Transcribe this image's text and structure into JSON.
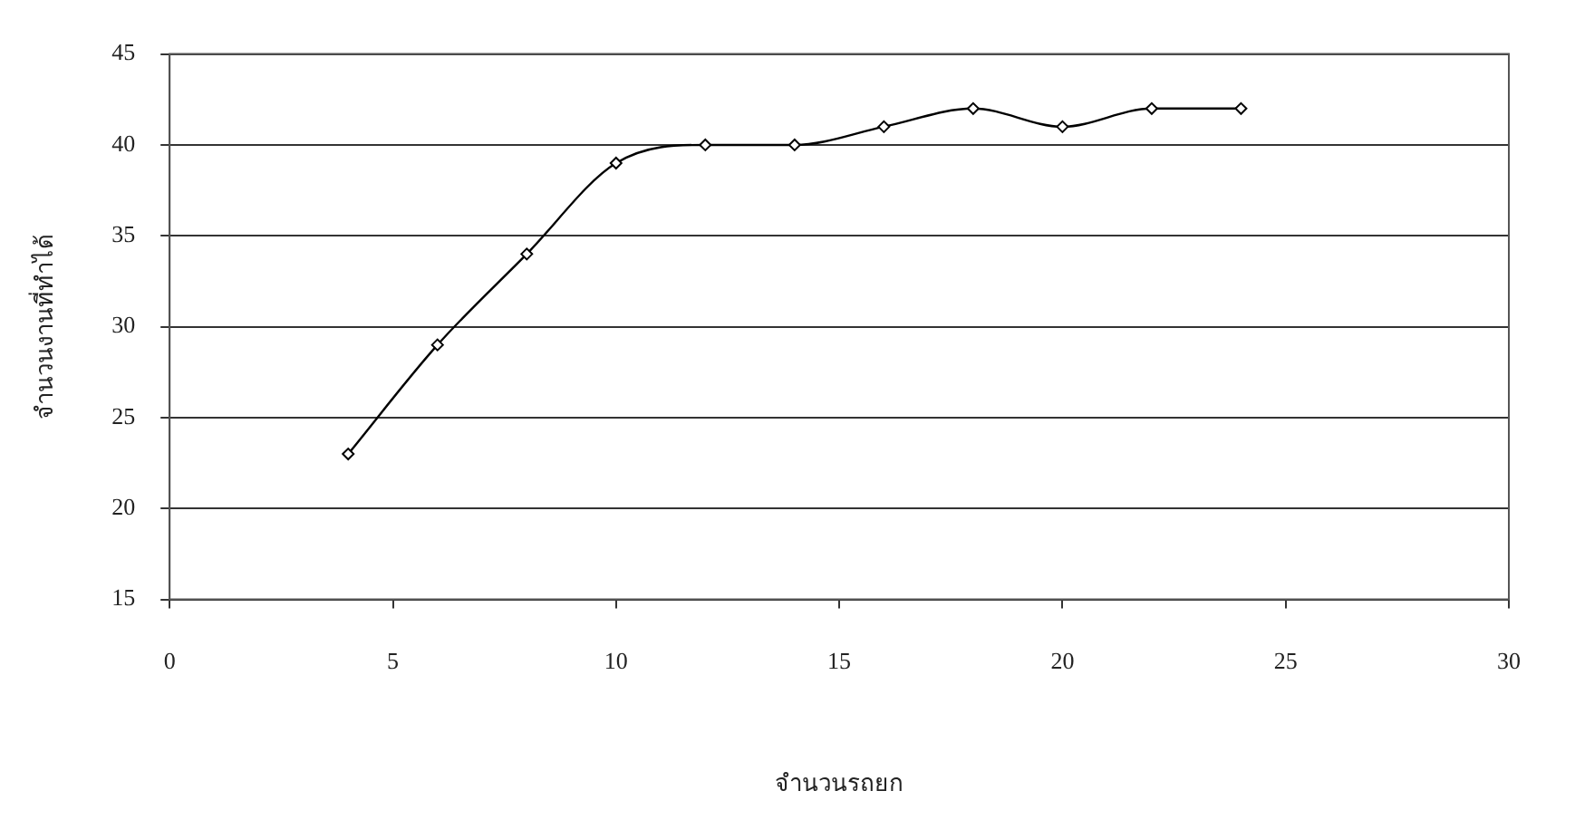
{
  "chart_data": {
    "type": "line",
    "xlabel": "จำนวนรถยก",
    "ylabel": "จำนวนงานที่ทำได้",
    "x": [
      4,
      6,
      8,
      10,
      12,
      14,
      16,
      18,
      20,
      22,
      24
    ],
    "series": [
      {
        "color": "#000000",
        "values": [
          23,
          29,
          34,
          39,
          40,
          40,
          41,
          42,
          41,
          42,
          42
        ]
      }
    ],
    "xlim": [
      0,
      30
    ],
    "xticks": [
      0,
      5,
      10,
      15,
      20,
      25,
      30
    ],
    "ylim": [
      15,
      45
    ],
    "yticks": [
      15,
      20,
      25,
      30,
      35,
      40,
      45
    ],
    "grid": "y",
    "legend": false,
    "marker": "diamond",
    "line_style": "solid"
  }
}
